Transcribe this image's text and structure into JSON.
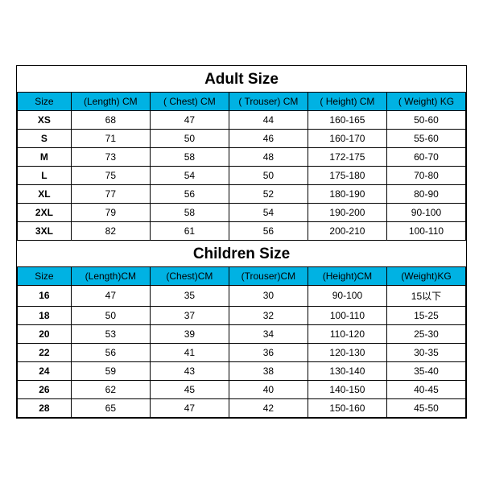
{
  "styling": {
    "header_bg": "#00b2e3",
    "header_fg": "#000000",
    "border_color": "#000000",
    "title_fontsize": 19,
    "cell_fontsize": 12,
    "background_color": "#ffffff"
  },
  "adult": {
    "title": "Adult Size",
    "columns": [
      "Size",
      "(Length)  CM",
      "( Chest)  CM",
      "( Trouser)  CM",
      "( Height)  CM",
      "( Weight)  KG"
    ],
    "rows": [
      [
        "XS",
        "68",
        "47",
        "44",
        "160-165",
        "50-60"
      ],
      [
        "S",
        "71",
        "50",
        "46",
        "160-170",
        "55-60"
      ],
      [
        "M",
        "73",
        "58",
        "48",
        "172-175",
        "60-70"
      ],
      [
        "L",
        "75",
        "54",
        "50",
        "175-180",
        "70-80"
      ],
      [
        "XL",
        "77",
        "56",
        "52",
        "180-190",
        "80-90"
      ],
      [
        "2XL",
        "79",
        "58",
        "54",
        "190-200",
        "90-100"
      ],
      [
        "3XL",
        "82",
        "61",
        "56",
        "200-210",
        "100-110"
      ]
    ]
  },
  "children": {
    "title": "Children Size",
    "columns": [
      "Size",
      "(Length)CM",
      "(Chest)CM",
      "(Trouser)CM",
      "(Height)CM",
      "(Weight)KG"
    ],
    "rows": [
      [
        "16",
        "47",
        "35",
        "30",
        "90-100",
        "15以下"
      ],
      [
        "18",
        "50",
        "37",
        "32",
        "100-110",
        "15-25"
      ],
      [
        "20",
        "53",
        "39",
        "34",
        "110-120",
        "25-30"
      ],
      [
        "22",
        "56",
        "41",
        "36",
        "120-130",
        "30-35"
      ],
      [
        "24",
        "59",
        "43",
        "38",
        "130-140",
        "35-40"
      ],
      [
        "26",
        "62",
        "45",
        "40",
        "140-150",
        "40-45"
      ],
      [
        "28",
        "65",
        "47",
        "42",
        "150-160",
        "45-50"
      ]
    ]
  }
}
